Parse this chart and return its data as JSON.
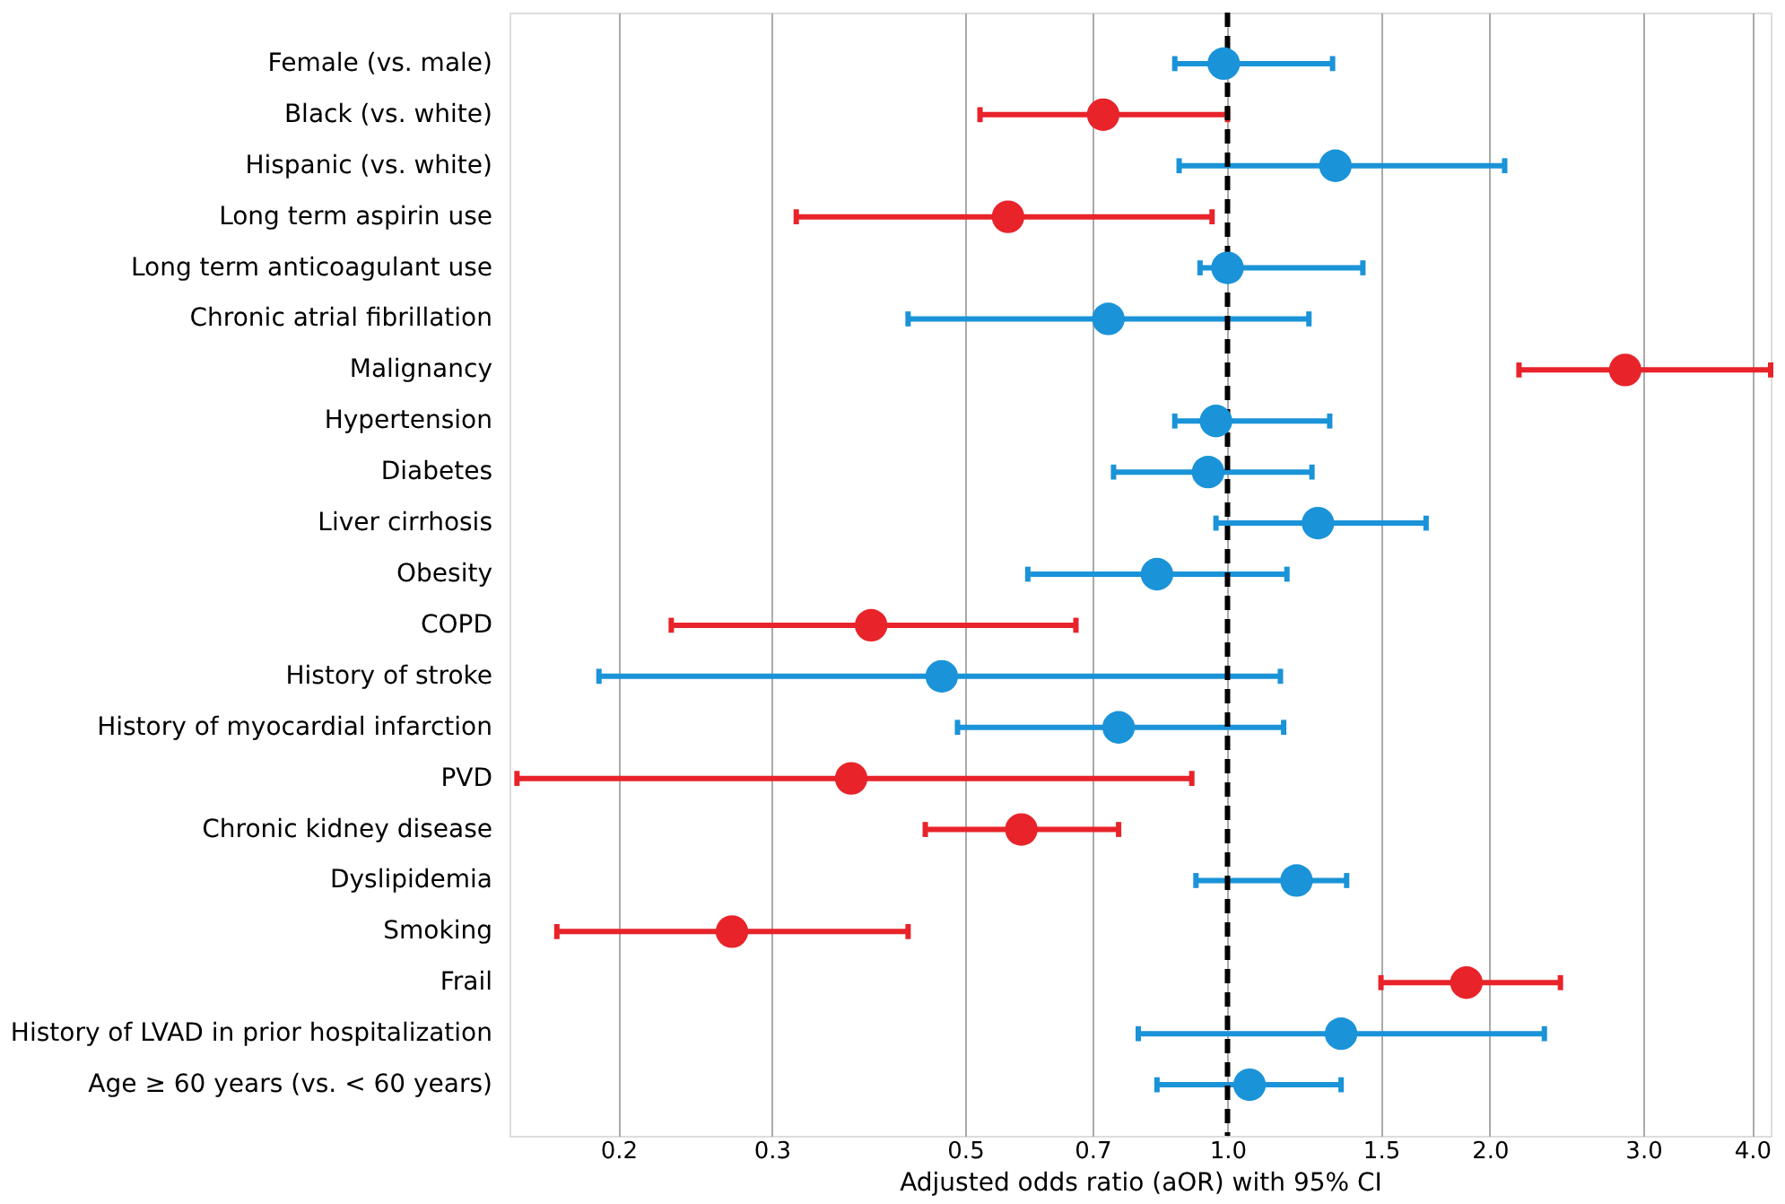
{
  "chart_data": {
    "type": "scatter",
    "orientation": "horizontal",
    "xlabel": "Adjusted odds ratio (aOR) with 95% CI",
    "log": "x",
    "grid": "x",
    "marker": "circle",
    "categories": [
      "Female (vs. male)",
      "Black (vs. white)",
      "Hispanic (vs. white)",
      "Long term aspirin use",
      "Long term anticoagulant use",
      "Chronic atrial fibrillation",
      "Malignancy",
      "Hypertension",
      "Diabetes",
      "Liver cirrhosis",
      "Obesity",
      "COPD",
      "History of stroke",
      "History of myocardial infarction",
      "PVD",
      "Chronic kidney disease",
      "Dyslipidemia",
      "Smoking",
      "Frail",
      "History of LVAD in prior hospitalization",
      "Age ≥ 60 years (vs. < 60 years)"
    ],
    "values": [
      0.99,
      0.72,
      1.33,
      0.56,
      1.0,
      0.73,
      2.86,
      0.97,
      0.95,
      1.27,
      0.83,
      0.39,
      0.47,
      0.75,
      0.37,
      0.58,
      1.2,
      0.27,
      1.88,
      1.35,
      1.06
    ],
    "errors": [
      [
        0.87,
        1.32
      ],
      [
        0.52,
        1.0
      ],
      [
        0.88,
        2.08
      ],
      [
        0.32,
        0.96
      ],
      [
        0.93,
        1.43
      ],
      [
        0.43,
        1.24
      ],
      [
        2.16,
        4.2
      ],
      [
        0.87,
        1.31
      ],
      [
        0.74,
        1.25
      ],
      [
        0.97,
        1.69
      ],
      [
        0.59,
        1.17
      ],
      [
        0.23,
        0.67
      ],
      [
        0.19,
        1.15
      ],
      [
        0.49,
        1.16
      ],
      [
        0.153,
        0.91
      ],
      [
        0.45,
        0.75
      ],
      [
        0.92,
        1.37
      ],
      [
        0.17,
        0.43
      ],
      [
        1.5,
        2.41
      ],
      [
        0.79,
        2.31
      ],
      [
        0.83,
        1.35
      ]
    ],
    "colors": [
      "#1a93d8",
      "#e8232a",
      "#1a93d8",
      "#e8232a",
      "#1a93d8",
      "#1a93d8",
      "#e8232a",
      "#1a93d8",
      "#1a93d8",
      "#1a93d8",
      "#1a93d8",
      "#e8232a",
      "#1a93d8",
      "#1a93d8",
      "#e8232a",
      "#e8232a",
      "#1a93d8",
      "#e8232a",
      "#e8232a",
      "#1a93d8",
      "#1a93d8"
    ],
    "xlim": [
      0.15,
      4.2
    ],
    "xticks": [
      0.2,
      0.3,
      0.5,
      0.7,
      {
        "value": 1,
        "label": "1.0"
      },
      1.5,
      {
        "value": 2,
        "label": "2.0"
      },
      {
        "value": 3,
        "label": "3.0"
      },
      {
        "value": 4,
        "label": "4.0"
      }
    ],
    "ref_lines": [
      {
        "axis": "x",
        "value": 1,
        "color": "#000000",
        "line_style": "dashed"
      }
    ]
  }
}
